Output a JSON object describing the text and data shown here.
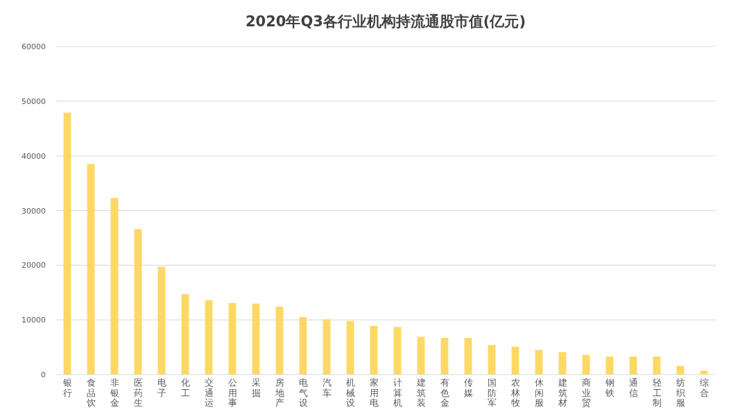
{
  "chart_data": {
    "type": "bar",
    "title": "2020年Q3各行业机构持流通股市值(亿元)",
    "categories": [
      "银行",
      "食品饮",
      "非银金",
      "医药生",
      "电子",
      "化工",
      "交通运",
      "公用事",
      "采掘",
      "房地产",
      "电气设",
      "汽车",
      "机械设",
      "家用电",
      "计算机",
      "建筑装",
      "有色金",
      "传媒",
      "国防军",
      "农林牧",
      "休闲服",
      "建筑材",
      "商业贸",
      "钢铁",
      "通信",
      "轻工制",
      "纺织服",
      "综合"
    ],
    "values": [
      47900,
      38500,
      32300,
      26600,
      19700,
      14700,
      13600,
      13100,
      13000,
      12400,
      10500,
      10100,
      9800,
      8900,
      8700,
      6900,
      6700,
      6700,
      5400,
      5100,
      4500,
      4100,
      3600,
      3300,
      3300,
      3300,
      1600,
      700
    ],
    "color": "#fdd865",
    "ylim": [
      0,
      60000
    ],
    "yticks": [
      0,
      10000,
      20000,
      30000,
      40000,
      50000,
      60000
    ],
    "grid": "y"
  }
}
